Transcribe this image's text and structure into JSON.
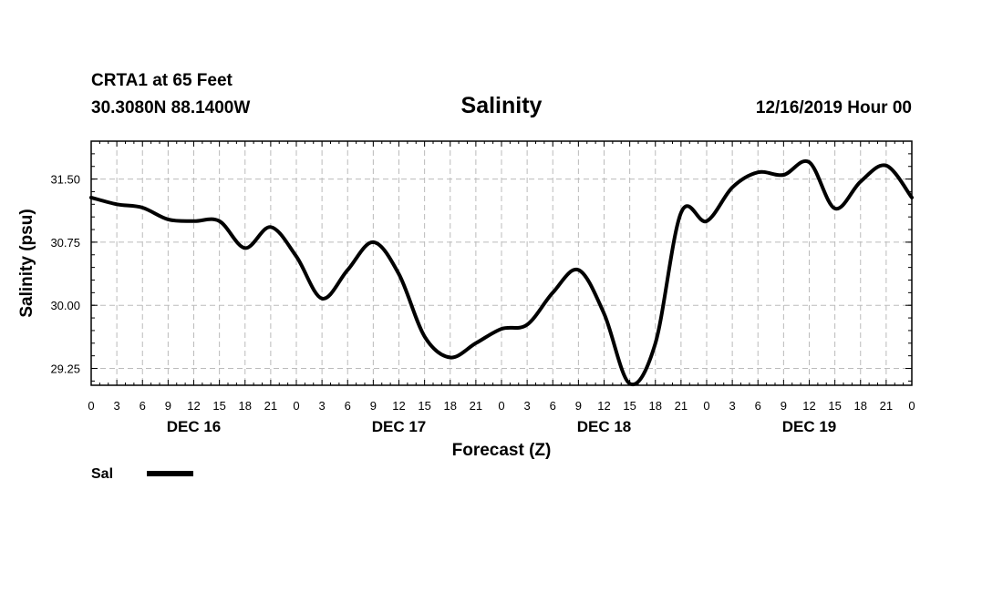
{
  "header": {
    "station": "CRTA1 at 65 Feet",
    "coords": "30.3080N 88.1400W",
    "timestamp": "12/16/2019 Hour 00"
  },
  "legend": {
    "entries": [
      {
        "label": "Sal",
        "color": "#000000"
      }
    ]
  },
  "chart_data": {
    "type": "line",
    "title": "Salinity",
    "xlabel": "Forecast (Z)",
    "ylabel": "Salinity (psu)",
    "xlim": [
      0,
      96
    ],
    "ylim": [
      29.05,
      31.95
    ],
    "yticks": [
      29.25,
      30.0,
      30.75,
      31.5
    ],
    "ytick_labels": [
      "29.25",
      "30.00",
      "30.75",
      "31.50"
    ],
    "xticks": [
      0,
      3,
      6,
      9,
      12,
      15,
      18,
      21,
      24,
      27,
      30,
      33,
      36,
      39,
      42,
      45,
      48,
      51,
      54,
      57,
      60,
      63,
      66,
      69,
      72,
      75,
      78,
      81,
      84,
      87,
      90,
      93,
      96
    ],
    "xtick_labels": [
      "0",
      "3",
      "6",
      "9",
      "12",
      "15",
      "18",
      "21",
      "0",
      "3",
      "6",
      "9",
      "12",
      "15",
      "18",
      "21",
      "0",
      "3",
      "6",
      "9",
      "12",
      "15",
      "18",
      "21",
      "0",
      "3",
      "6",
      "9",
      "12",
      "15",
      "18",
      "21",
      "0"
    ],
    "day_labels": [
      {
        "label": "DEC 16",
        "x": 12
      },
      {
        "label": "DEC 17",
        "x": 36
      },
      {
        "label": "DEC 18",
        "x": 60
      },
      {
        "label": "DEC 19",
        "x": 84
      }
    ],
    "grid": true,
    "series": [
      {
        "name": "Sal",
        "x": [
          0,
          3,
          6,
          9,
          12,
          15,
          18,
          21,
          24,
          27,
          30,
          33,
          36,
          39,
          42,
          45,
          48,
          51,
          54,
          57,
          60,
          63,
          66,
          69,
          72,
          75,
          78,
          81,
          84,
          87,
          90,
          93,
          96
        ],
        "values": [
          31.28,
          31.2,
          31.16,
          31.02,
          31.0,
          31.0,
          30.68,
          30.93,
          30.58,
          30.08,
          30.42,
          30.75,
          30.37,
          29.63,
          29.38,
          29.55,
          29.72,
          29.77,
          30.15,
          30.42,
          29.9,
          29.07,
          29.55,
          31.1,
          31.0,
          31.4,
          31.58,
          31.55,
          31.7,
          31.15,
          31.47,
          31.66,
          31.28
        ]
      }
    ]
  }
}
